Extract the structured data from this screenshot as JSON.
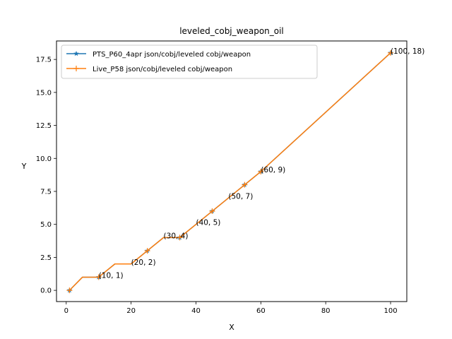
{
  "chart_data": {
    "type": "line",
    "title": "leveled_cobj_weapon_oil",
    "xlabel": "X",
    "ylabel": "Y",
    "xlim": [
      -3,
      105
    ],
    "ylim": [
      -0.85,
      18.9
    ],
    "xticks": [
      0,
      20,
      40,
      60,
      80,
      100
    ],
    "xtick_labels": [
      "0",
      "20",
      "40",
      "60",
      "80",
      "100"
    ],
    "yticks": [
      0,
      2.5,
      5,
      7.5,
      10,
      12.5,
      15,
      17.5
    ],
    "ytick_labels": [
      "0.0",
      "2.5",
      "5.0",
      "7.5",
      "10.0",
      "12.5",
      "15.0",
      "17.5"
    ],
    "grid": false,
    "legend_position": "top-left",
    "series": [
      {
        "name": "PTS_P60_4apr json/cobj/leveled cobj/weapon",
        "color": "#1f77b4",
        "marker": "star",
        "x": [
          1,
          5,
          10,
          15,
          20,
          25,
          30,
          35,
          40,
          45,
          50,
          55,
          60,
          100
        ],
        "y": [
          0,
          1,
          1,
          2,
          2,
          3,
          4,
          4,
          5,
          6,
          7,
          8,
          9,
          18
        ],
        "marker_x": [
          1,
          10,
          25,
          35,
          45,
          55,
          60,
          100
        ],
        "marker_y": [
          0,
          1,
          3,
          4,
          6,
          8,
          9,
          18
        ]
      },
      {
        "name": "Live_P58 json/cobj/leveled cobj/weapon",
        "color": "#ff7f0e",
        "marker": "plus",
        "x": [
          1,
          5,
          10,
          15,
          20,
          25,
          30,
          35,
          40,
          45,
          50,
          55,
          60,
          100
        ],
        "y": [
          0,
          1,
          1,
          2,
          2,
          3,
          4,
          4,
          5,
          6,
          7,
          8,
          9,
          18
        ],
        "marker_x": [
          1,
          10,
          25,
          35,
          45,
          55,
          60,
          100
        ],
        "marker_y": [
          0,
          1,
          3,
          4,
          6,
          8,
          9,
          18
        ]
      }
    ],
    "annotations": [
      {
        "text": "(10, 1)",
        "x": 10,
        "y": 1
      },
      {
        "text": "(20, 2)",
        "x": 20,
        "y": 2
      },
      {
        "text": "(30, 4)",
        "x": 30,
        "y": 4
      },
      {
        "text": "(40, 5)",
        "x": 40,
        "y": 5
      },
      {
        "text": "(50, 7)",
        "x": 50,
        "y": 7
      },
      {
        "text": "(60, 9)",
        "x": 60,
        "y": 9
      },
      {
        "text": "(100, 18)",
        "x": 100,
        "y": 18
      }
    ]
  }
}
